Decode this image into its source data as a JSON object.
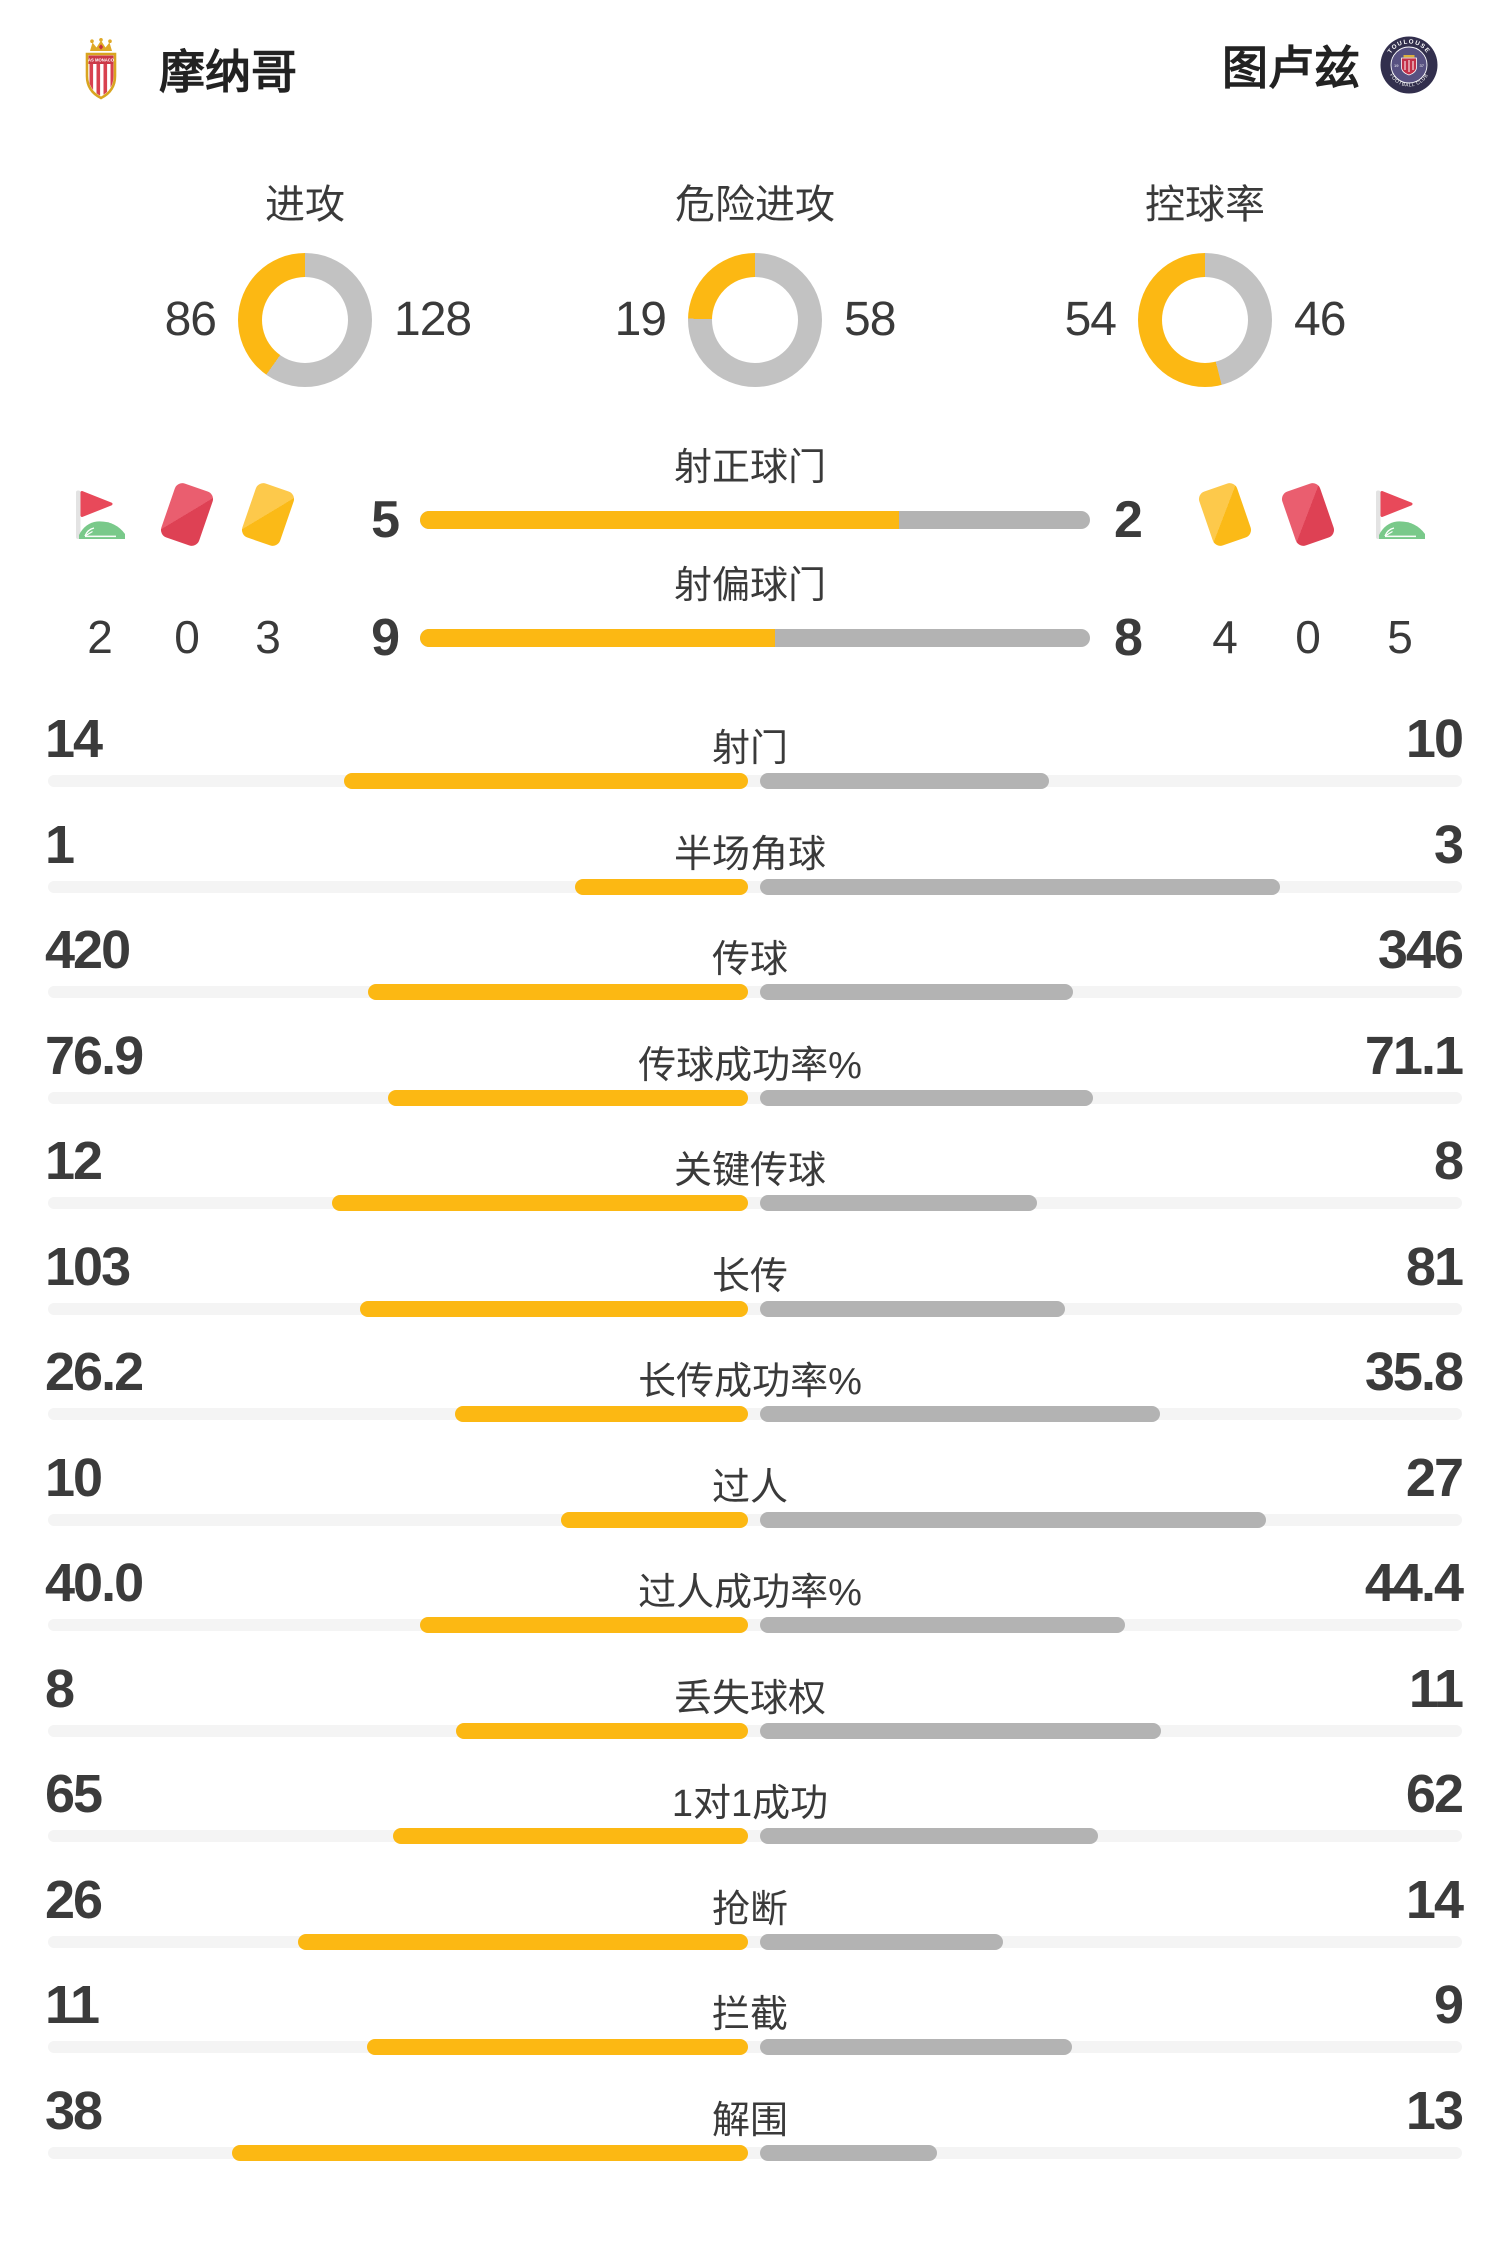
{
  "header": {
    "home": {
      "name": "摩纳哥",
      "logo": "monaco-crest-icon"
    },
    "away": {
      "name": "图卢兹",
      "logo": "toulouse-crest-icon"
    }
  },
  "colors": {
    "home": "#FCB813",
    "away_bar": "#B3B3B3",
    "away_donut": "#C2C2C2",
    "track": "#F4F4F4",
    "text": "#3A3A3A"
  },
  "donuts": [
    {
      "label": "进攻",
      "home": 86,
      "away": 128
    },
    {
      "label": "危险进攻",
      "home": 19,
      "away": 58
    },
    {
      "label": "控球率",
      "home": 54,
      "away": 46
    }
  ],
  "shot_bars": [
    {
      "label": "射正球门",
      "home": 5,
      "away": 2
    },
    {
      "label": "射偏球门",
      "home": 9,
      "away": 8
    }
  ],
  "discipline": {
    "home": {
      "icons": [
        "corner-flag-icon",
        "red-card-icon",
        "yellow-card-icon"
      ],
      "values": [
        2,
        0,
        3
      ]
    },
    "away": {
      "icons": [
        "yellow-card-icon",
        "red-card-icon",
        "corner-flag-icon"
      ],
      "values": [
        4,
        0,
        5
      ]
    }
  },
  "stat_rows": [
    {
      "label": "射门",
      "home": "14",
      "away": "10"
    },
    {
      "label": "半场角球",
      "home": "1",
      "away": "3"
    },
    {
      "label": "传球",
      "home": "420",
      "away": "346"
    },
    {
      "label": "传球成功率%",
      "home": "76.9",
      "away": "71.1"
    },
    {
      "label": "关键传球",
      "home": "12",
      "away": "8"
    },
    {
      "label": "长传",
      "home": "103",
      "away": "81"
    },
    {
      "label": "长传成功率%",
      "home": "26.2",
      "away": "35.8"
    },
    {
      "label": "过人",
      "home": "10",
      "away": "27"
    },
    {
      "label": "过人成功率%",
      "home": "40.0",
      "away": "44.4"
    },
    {
      "label": "丢失球权",
      "home": "8",
      "away": "11"
    },
    {
      "label": "1对1成功",
      "home": "65",
      "away": "62"
    },
    {
      "label": "抢断",
      "home": "26",
      "away": "14"
    },
    {
      "label": "拦截",
      "home": "11",
      "away": "9"
    },
    {
      "label": "解围",
      "home": "38",
      "away": "13"
    }
  ],
  "chart_data": [
    {
      "type": "pie",
      "variant": "donut",
      "title": "进攻",
      "series": [
        {
          "name": "摩纳哥",
          "value": 86
        },
        {
          "name": "图卢兹",
          "value": 128
        }
      ]
    },
    {
      "type": "pie",
      "variant": "donut",
      "title": "危险进攻",
      "series": [
        {
          "name": "摩纳哥",
          "value": 19
        },
        {
          "name": "图卢兹",
          "value": 58
        }
      ]
    },
    {
      "type": "pie",
      "variant": "donut",
      "title": "控球率",
      "series": [
        {
          "name": "摩纳哥",
          "value": 54
        },
        {
          "name": "图卢兹",
          "value": 46
        }
      ]
    },
    {
      "type": "bar",
      "variant": "split-comparison",
      "title": "射正球门",
      "series": [
        {
          "name": "摩纳哥",
          "value": 5
        },
        {
          "name": "图卢兹",
          "value": 2
        }
      ]
    },
    {
      "type": "bar",
      "variant": "split-comparison",
      "title": "射偏球门",
      "series": [
        {
          "name": "摩纳哥",
          "value": 9
        },
        {
          "name": "图卢兹",
          "value": 8
        }
      ]
    },
    {
      "type": "bar",
      "variant": "mirrored-comparison",
      "categories": [
        "射门",
        "半场角球",
        "传球",
        "传球成功率%",
        "关键传球",
        "长传",
        "长传成功率%",
        "过人",
        "过人成功率%",
        "丢失球权",
        "1对1成功",
        "抢断",
        "拦截",
        "解围"
      ],
      "series": [
        {
          "name": "摩纳哥",
          "values": [
            14,
            1,
            420,
            76.9,
            12,
            103,
            26.2,
            10,
            40.0,
            8,
            65,
            26,
            11,
            38
          ]
        },
        {
          "name": "图卢兹",
          "values": [
            10,
            3,
            346,
            71.1,
            8,
            81,
            35.8,
            27,
            44.4,
            11,
            62,
            14,
            9,
            13
          ]
        }
      ],
      "note": "每行左右条长度 = 数值占两队之和的比例"
    }
  ]
}
